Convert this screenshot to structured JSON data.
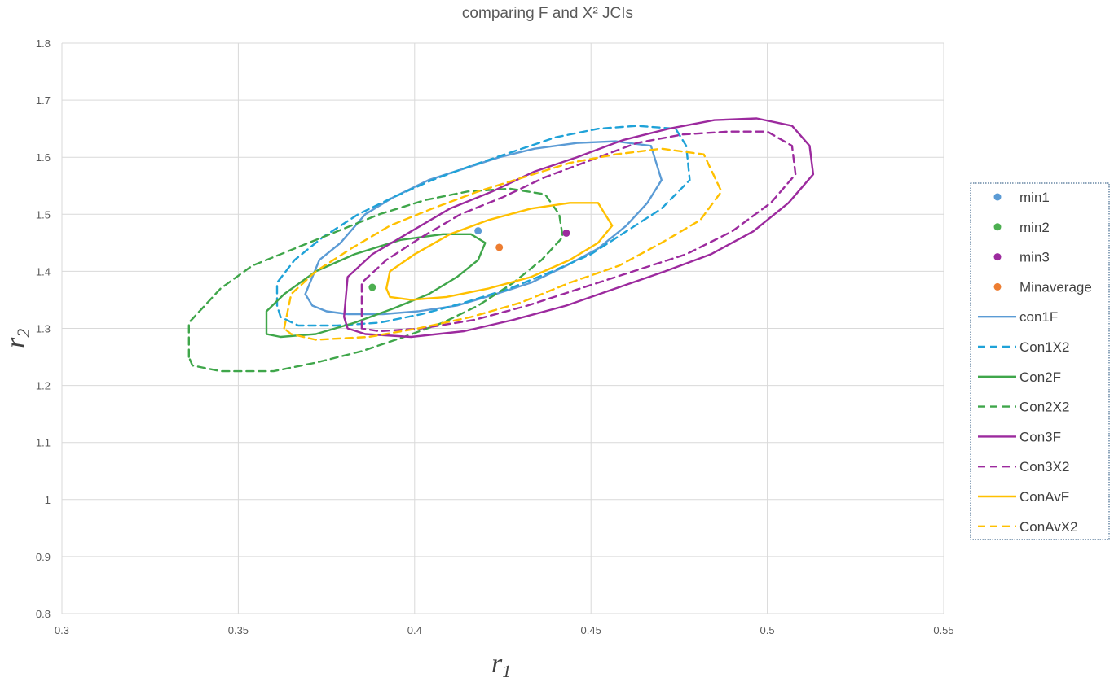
{
  "chart_data": {
    "type": "line",
    "title": "comparing F and X² JCIs",
    "xlabel": "r",
    "xlabel_sub": "1",
    "ylabel": "r",
    "ylabel_sub": "2",
    "xlim": [
      0.3,
      0.55
    ],
    "ylim": [
      0.8,
      1.8
    ],
    "xticks": [
      0.3,
      0.35,
      0.4,
      0.45,
      0.5,
      0.55
    ],
    "yticks": [
      0.8,
      0.9,
      1,
      1.1,
      1.2,
      1.3,
      1.4,
      1.5,
      1.6,
      1.7,
      1.8
    ],
    "grid": true,
    "legend_position": "right",
    "series": [
      {
        "name": "min1",
        "kind": "point",
        "color": "#5B9BD5",
        "points": [
          [
            0.418,
            1.471
          ]
        ]
      },
      {
        "name": "min2",
        "kind": "point",
        "color": "#4CAF50",
        "points": [
          [
            0.388,
            1.372
          ]
        ]
      },
      {
        "name": "min3",
        "kind": "point",
        "color": "#9C2A9E",
        "points": [
          [
            0.443,
            1.467
          ]
        ]
      },
      {
        "name": "Minaverage",
        "kind": "point",
        "color": "#ED7D31",
        "points": [
          [
            0.424,
            1.442
          ]
        ]
      },
      {
        "name": "con1F",
        "kind": "line",
        "dash": false,
        "color": "#5B9BD5",
        "points": [
          [
            0.369,
            1.36
          ],
          [
            0.371,
            1.39
          ],
          [
            0.373,
            1.42
          ],
          [
            0.379,
            1.45
          ],
          [
            0.386,
            1.5
          ],
          [
            0.394,
            1.53
          ],
          [
            0.404,
            1.56
          ],
          [
            0.414,
            1.58
          ],
          [
            0.424,
            1.6
          ],
          [
            0.434,
            1.615
          ],
          [
            0.446,
            1.625
          ],
          [
            0.457,
            1.628
          ],
          [
            0.467,
            1.62
          ],
          [
            0.47,
            1.56
          ],
          [
            0.466,
            1.52
          ],
          [
            0.46,
            1.48
          ],
          [
            0.452,
            1.44
          ],
          [
            0.443,
            1.41
          ],
          [
            0.433,
            1.38
          ],
          [
            0.423,
            1.36
          ],
          [
            0.412,
            1.34
          ],
          [
            0.401,
            1.33
          ],
          [
            0.391,
            1.325
          ],
          [
            0.381,
            1.325
          ],
          [
            0.375,
            1.33
          ],
          [
            0.371,
            1.34
          ],
          [
            0.369,
            1.36
          ]
        ]
      },
      {
        "name": "Con1X2",
        "kind": "line",
        "dash": true,
        "color": "#1FA2D8",
        "points": [
          [
            0.361,
            1.34
          ],
          [
            0.361,
            1.38
          ],
          [
            0.366,
            1.42
          ],
          [
            0.374,
            1.46
          ],
          [
            0.384,
            1.5
          ],
          [
            0.394,
            1.53
          ],
          [
            0.405,
            1.56
          ],
          [
            0.416,
            1.585
          ],
          [
            0.428,
            1.61
          ],
          [
            0.44,
            1.635
          ],
          [
            0.452,
            1.65
          ],
          [
            0.463,
            1.655
          ],
          [
            0.474,
            1.65
          ],
          [
            0.477,
            1.62
          ],
          [
            0.478,
            1.56
          ],
          [
            0.47,
            1.51
          ],
          [
            0.46,
            1.47
          ],
          [
            0.45,
            1.43
          ],
          [
            0.439,
            1.4
          ],
          [
            0.427,
            1.37
          ],
          [
            0.414,
            1.345
          ],
          [
            0.402,
            1.325
          ],
          [
            0.39,
            1.31
          ],
          [
            0.378,
            1.305
          ],
          [
            0.367,
            1.305
          ],
          [
            0.362,
            1.32
          ],
          [
            0.361,
            1.34
          ]
        ]
      },
      {
        "name": "Con2F",
        "kind": "line",
        "dash": false,
        "color": "#3FA64A",
        "points": [
          [
            0.358,
            1.29
          ],
          [
            0.358,
            1.33
          ],
          [
            0.363,
            1.36
          ],
          [
            0.372,
            1.4
          ],
          [
            0.383,
            1.43
          ],
          [
            0.396,
            1.455
          ],
          [
            0.408,
            1.465
          ],
          [
            0.416,
            1.465
          ],
          [
            0.42,
            1.45
          ],
          [
            0.418,
            1.42
          ],
          [
            0.412,
            1.39
          ],
          [
            0.404,
            1.36
          ],
          [
            0.394,
            1.335
          ],
          [
            0.383,
            1.31
          ],
          [
            0.372,
            1.29
          ],
          [
            0.362,
            1.285
          ],
          [
            0.358,
            1.29
          ]
        ]
      },
      {
        "name": "Con2X2",
        "kind": "line",
        "dash": true,
        "color": "#3FA64A",
        "points": [
          [
            0.336,
            1.25
          ],
          [
            0.336,
            1.31
          ],
          [
            0.345,
            1.37
          ],
          [
            0.354,
            1.41
          ],
          [
            0.366,
            1.44
          ],
          [
            0.378,
            1.47
          ],
          [
            0.39,
            1.5
          ],
          [
            0.403,
            1.525
          ],
          [
            0.415,
            1.54
          ],
          [
            0.427,
            1.545
          ],
          [
            0.437,
            1.535
          ],
          [
            0.441,
            1.5
          ],
          [
            0.442,
            1.46
          ],
          [
            0.436,
            1.42
          ],
          [
            0.428,
            1.38
          ],
          [
            0.418,
            1.34
          ],
          [
            0.408,
            1.31
          ],
          [
            0.397,
            1.285
          ],
          [
            0.385,
            1.26
          ],
          [
            0.372,
            1.24
          ],
          [
            0.36,
            1.225
          ],
          [
            0.345,
            1.225
          ],
          [
            0.337,
            1.235
          ],
          [
            0.336,
            1.25
          ]
        ]
      },
      {
        "name": "Con3F",
        "kind": "line",
        "dash": false,
        "color": "#9C2A9E",
        "points": [
          [
            0.38,
            1.32
          ],
          [
            0.381,
            1.39
          ],
          [
            0.388,
            1.43
          ],
          [
            0.399,
            1.47
          ],
          [
            0.41,
            1.51
          ],
          [
            0.422,
            1.54
          ],
          [
            0.434,
            1.575
          ],
          [
            0.446,
            1.6
          ],
          [
            0.459,
            1.63
          ],
          [
            0.472,
            1.65
          ],
          [
            0.485,
            1.665
          ],
          [
            0.497,
            1.668
          ],
          [
            0.507,
            1.655
          ],
          [
            0.512,
            1.62
          ],
          [
            0.513,
            1.57
          ],
          [
            0.506,
            1.52
          ],
          [
            0.496,
            1.47
          ],
          [
            0.484,
            1.43
          ],
          [
            0.471,
            1.4
          ],
          [
            0.457,
            1.37
          ],
          [
            0.443,
            1.34
          ],
          [
            0.428,
            1.315
          ],
          [
            0.414,
            1.295
          ],
          [
            0.399,
            1.285
          ],
          [
            0.386,
            1.29
          ],
          [
            0.381,
            1.3
          ],
          [
            0.38,
            1.32
          ]
        ]
      },
      {
        "name": "Con3X2",
        "kind": "line",
        "dash": true,
        "color": "#9C2A9E",
        "points": [
          [
            0.385,
            1.3
          ],
          [
            0.385,
            1.38
          ],
          [
            0.392,
            1.42
          ],
          [
            0.402,
            1.46
          ],
          [
            0.413,
            1.5
          ],
          [
            0.425,
            1.53
          ],
          [
            0.437,
            1.565
          ],
          [
            0.45,
            1.595
          ],
          [
            0.463,
            1.625
          ],
          [
            0.476,
            1.64
          ],
          [
            0.489,
            1.645
          ],
          [
            0.5,
            1.645
          ],
          [
            0.507,
            1.62
          ],
          [
            0.508,
            1.57
          ],
          [
            0.501,
            1.52
          ],
          [
            0.49,
            1.47
          ],
          [
            0.477,
            1.43
          ],
          [
            0.462,
            1.4
          ],
          [
            0.447,
            1.37
          ],
          [
            0.432,
            1.34
          ],
          [
            0.417,
            1.315
          ],
          [
            0.402,
            1.3
          ],
          [
            0.39,
            1.295
          ],
          [
            0.385,
            1.3
          ]
        ]
      },
      {
        "name": "ConAvF",
        "kind": "line",
        "dash": false,
        "color": "#FFC000",
        "points": [
          [
            0.392,
            1.37
          ],
          [
            0.393,
            1.4
          ],
          [
            0.4,
            1.43
          ],
          [
            0.41,
            1.465
          ],
          [
            0.421,
            1.49
          ],
          [
            0.433,
            1.51
          ],
          [
            0.444,
            1.52
          ],
          [
            0.452,
            1.52
          ],
          [
            0.456,
            1.48
          ],
          [
            0.452,
            1.45
          ],
          [
            0.444,
            1.42
          ],
          [
            0.433,
            1.39
          ],
          [
            0.421,
            1.37
          ],
          [
            0.409,
            1.355
          ],
          [
            0.399,
            1.35
          ],
          [
            0.393,
            1.355
          ],
          [
            0.392,
            1.37
          ]
        ]
      },
      {
        "name": "ConAvX2",
        "kind": "line",
        "dash": true,
        "color": "#FFC000",
        "points": [
          [
            0.363,
            1.3
          ],
          [
            0.365,
            1.36
          ],
          [
            0.372,
            1.4
          ],
          [
            0.382,
            1.44
          ],
          [
            0.393,
            1.48
          ],
          [
            0.405,
            1.51
          ],
          [
            0.418,
            1.54
          ],
          [
            0.431,
            1.565
          ],
          [
            0.444,
            1.59
          ],
          [
            0.457,
            1.605
          ],
          [
            0.47,
            1.615
          ],
          [
            0.482,
            1.605
          ],
          [
            0.487,
            1.54
          ],
          [
            0.481,
            1.49
          ],
          [
            0.47,
            1.45
          ],
          [
            0.458,
            1.41
          ],
          [
            0.444,
            1.38
          ],
          [
            0.43,
            1.345
          ],
          [
            0.416,
            1.32
          ],
          [
            0.401,
            1.3
          ],
          [
            0.387,
            1.285
          ],
          [
            0.372,
            1.28
          ],
          [
            0.365,
            1.29
          ],
          [
            0.363,
            1.3
          ]
        ]
      }
    ]
  }
}
